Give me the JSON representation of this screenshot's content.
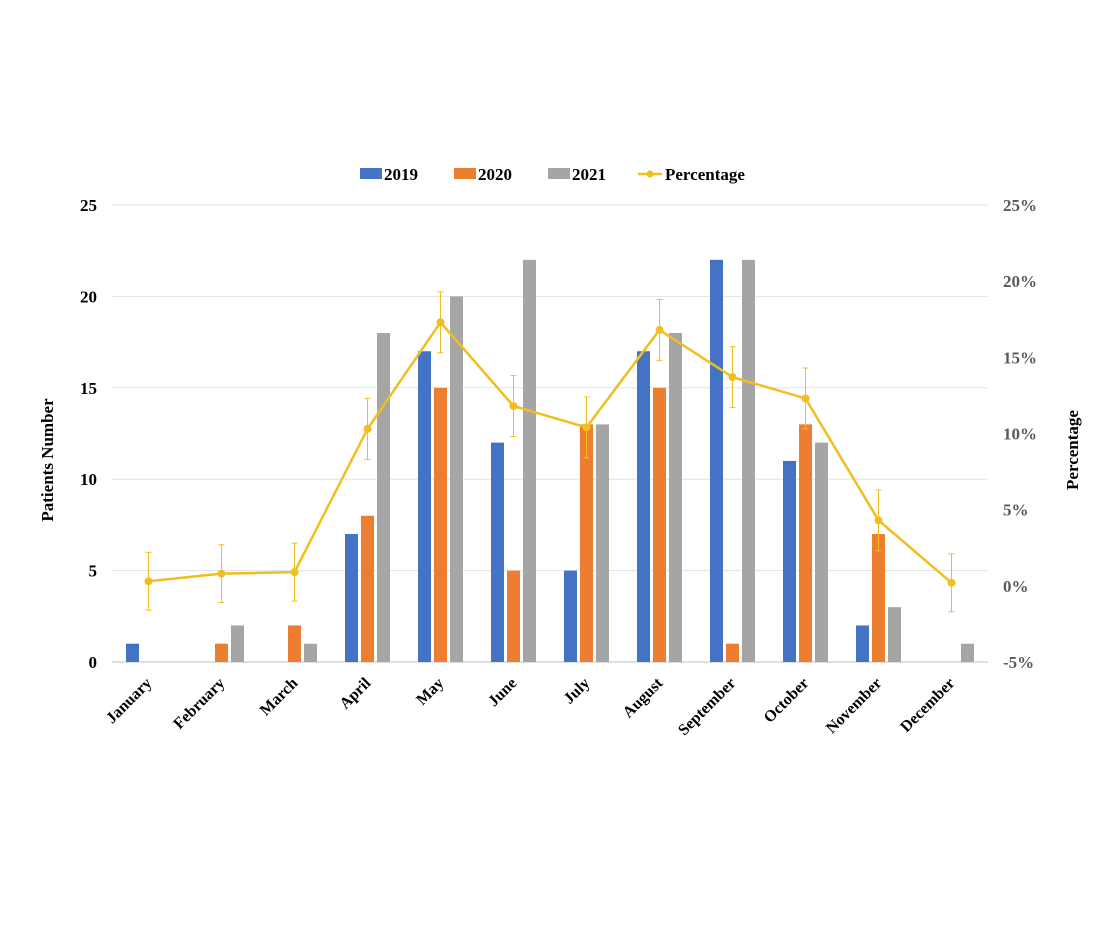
{
  "chart_data": {
    "type": "bar",
    "categories": [
      "January",
      "February",
      "March",
      "April",
      "May",
      "June",
      "July",
      "August",
      "September",
      "October",
      "November",
      "December"
    ],
    "series": [
      {
        "name": "2019",
        "color": "#4472C4",
        "values": [
          1,
          0,
          0,
          7,
          17,
          12,
          5,
          17,
          22,
          11,
          2,
          0
        ]
      },
      {
        "name": "2020",
        "color": "#ED7D31",
        "values": [
          0,
          1,
          2,
          8,
          15,
          5,
          13,
          15,
          1,
          13,
          7,
          0
        ]
      },
      {
        "name": "2021",
        "color": "#A5A5A5",
        "values": [
          0,
          2,
          1,
          18,
          20,
          22,
          13,
          18,
          22,
          12,
          3,
          1
        ]
      }
    ],
    "line_series": {
      "name": "Percentage",
      "color": "#F2BE1F",
      "values": [
        0.3,
        0.8,
        0.9,
        10.3,
        17.3,
        11.8,
        10.4,
        16.8,
        13.7,
        12.3,
        4.3,
        0.2
      ],
      "error": [
        1.9,
        1.9,
        1.9,
        2.0,
        2.0,
        2.0,
        2.0,
        2.0,
        2.0,
        2.0,
        2.0,
        1.9
      ]
    },
    "ylabel": "Patients Number",
    "y2label": "Percentage",
    "ylim": [
      0,
      25
    ],
    "yticks": [
      0,
      5,
      10,
      15,
      20,
      25
    ],
    "y2lim": [
      -5,
      25
    ],
    "y2ticks": [
      "-5%",
      "0%",
      "5%",
      "10%",
      "15%",
      "20%",
      "25%"
    ],
    "grid": true,
    "legend_position": "top"
  }
}
